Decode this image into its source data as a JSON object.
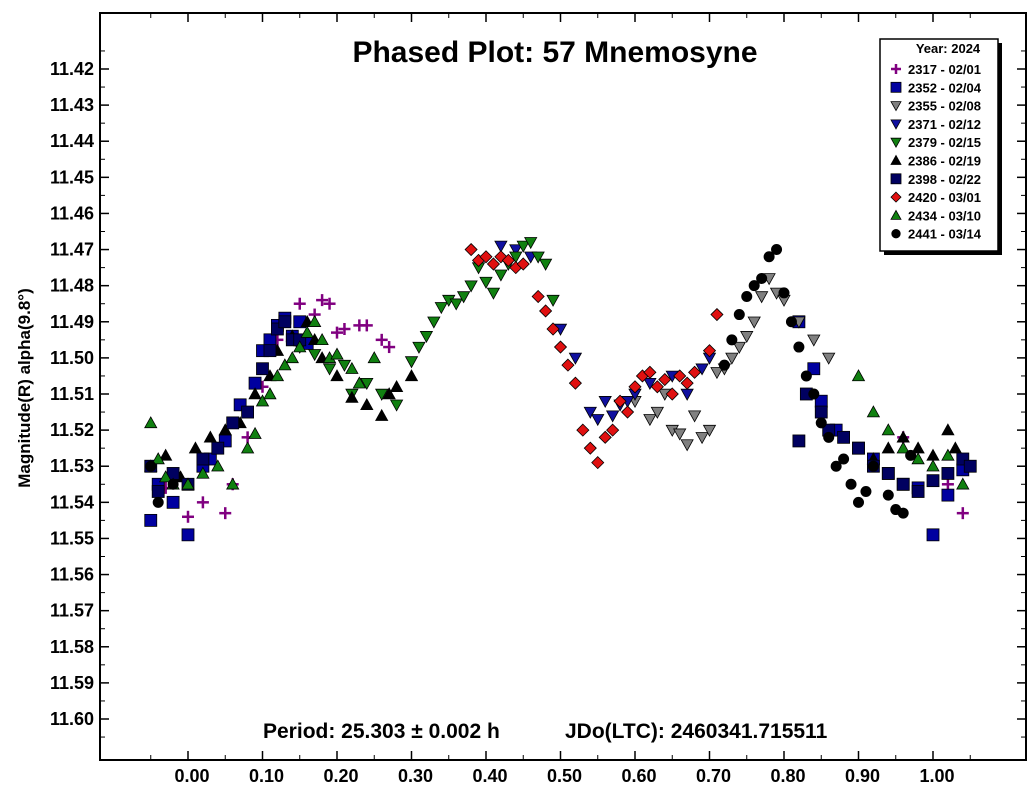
{
  "chart_data": {
    "type": "scatter",
    "title": "Phased Plot: 57 Mnemosyne",
    "ylabel": "Magnitude(R) alpha(9.8°)",
    "xlabel": "",
    "footer": {
      "period": "Period: 25.303 ± 0.002 h",
      "jdo": "JDo(LTC): 2460341.715511"
    },
    "xlim": [
      -0.12,
      1.12
    ],
    "ylim": [
      11.41,
      11.61
    ],
    "y_inverted": true,
    "x_ticks": [
      "0.00",
      "0.10",
      "0.20",
      "0.30",
      "0.40",
      "0.50",
      "0.60",
      "0.70",
      "0.80",
      "0.90",
      "1.00"
    ],
    "y_ticks": [
      "11.42",
      "11.43",
      "11.44",
      "11.45",
      "11.46",
      "11.47",
      "11.48",
      "11.49",
      "11.50",
      "11.51",
      "11.52",
      "11.53",
      "11.54",
      "11.55",
      "11.56",
      "11.57",
      "11.58",
      "11.59",
      "11.60"
    ],
    "grid": false,
    "legend_placement": "top-right",
    "legend_title": "Year: 2024",
    "series": [
      {
        "name": "2317 - 02/01",
        "marker": "plus",
        "color": "#800080",
        "x": [
          -0.03,
          0.0,
          0.02,
          0.05,
          0.06,
          0.08,
          0.1,
          0.12,
          0.15,
          0.17,
          0.18,
          0.19,
          0.2,
          0.21,
          0.23,
          0.24,
          0.26,
          0.27,
          0.96,
          1.02,
          1.04
        ],
        "y": [
          11.536,
          11.544,
          11.54,
          11.543,
          11.535,
          11.522,
          11.508,
          11.495,
          11.485,
          11.488,
          11.484,
          11.485,
          11.493,
          11.492,
          11.491,
          11.491,
          11.495,
          11.497,
          11.522,
          11.535,
          11.543
        ]
      },
      {
        "name": "2352 - 02/04",
        "marker": "square",
        "color": "#0000a0",
        "x": [
          -0.05,
          -0.04,
          -0.02,
          0.0,
          0.02,
          0.03,
          0.05,
          0.07,
          0.09,
          0.1,
          0.11,
          0.12,
          0.13,
          0.14,
          0.15,
          0.16,
          0.82,
          0.84,
          0.85,
          0.87,
          0.9,
          0.92,
          0.94,
          0.96,
          0.98,
          1.0,
          1.02,
          1.04
        ],
        "y": [
          11.545,
          11.535,
          11.54,
          11.549,
          11.53,
          11.528,
          11.523,
          11.513,
          11.507,
          11.498,
          11.495,
          11.491,
          11.489,
          11.494,
          11.49,
          11.496,
          11.49,
          11.503,
          11.512,
          11.52,
          11.525,
          11.528,
          11.532,
          11.535,
          11.536,
          11.549,
          11.538,
          11.531
        ]
      },
      {
        "name": "2355 - 02/08",
        "marker": "triangle-down",
        "color": "#808080",
        "x": [
          0.6,
          0.62,
          0.63,
          0.64,
          0.65,
          0.66,
          0.67,
          0.68,
          0.69,
          0.7,
          0.71,
          0.72,
          0.73,
          0.74,
          0.75,
          0.76,
          0.77,
          0.78,
          0.79,
          0.8,
          0.82,
          0.84,
          0.86
        ],
        "y": [
          11.512,
          11.517,
          11.515,
          11.51,
          11.52,
          11.521,
          11.524,
          11.516,
          11.522,
          11.52,
          11.504,
          11.503,
          11.5,
          11.497,
          11.494,
          11.49,
          11.483,
          11.478,
          11.482,
          11.484,
          11.49,
          11.495,
          11.5
        ]
      },
      {
        "name": "2371 - 02/12",
        "marker": "triangle-down",
        "color": "#1010a0",
        "x": [
          0.42,
          0.44,
          0.46,
          0.5,
          0.52,
          0.54,
          0.55,
          0.56,
          0.57,
          0.58,
          0.59,
          0.6,
          0.62,
          0.65,
          0.67,
          0.69,
          0.7
        ],
        "y": [
          11.469,
          11.47,
          11.472,
          11.492,
          11.5,
          11.515,
          11.517,
          11.512,
          11.516,
          11.513,
          11.512,
          11.51,
          11.507,
          11.505,
          11.51,
          11.503,
          11.5
        ]
      },
      {
        "name": "2379 - 02/15",
        "marker": "triangle-down",
        "color": "#108010",
        "x": [
          0.15,
          0.17,
          0.19,
          0.21,
          0.22,
          0.24,
          0.26,
          0.28,
          0.3,
          0.31,
          0.32,
          0.33,
          0.34,
          0.35,
          0.36,
          0.37,
          0.38,
          0.39,
          0.4,
          0.41,
          0.42,
          0.43,
          0.44,
          0.45,
          0.46,
          0.47,
          0.48,
          0.49
        ],
        "y": [
          11.497,
          11.499,
          11.503,
          11.502,
          11.51,
          11.507,
          11.51,
          11.513,
          11.501,
          11.497,
          11.494,
          11.49,
          11.486,
          11.484,
          11.485,
          11.483,
          11.48,
          11.475,
          11.479,
          11.482,
          11.477,
          11.474,
          11.472,
          11.469,
          11.468,
          11.472,
          11.474,
          11.484
        ]
      },
      {
        "name": "2386 - 02/19",
        "marker": "triangle-up",
        "color": "#000000",
        "x": [
          -0.05,
          -0.03,
          -0.01,
          0.01,
          0.03,
          0.05,
          0.07,
          0.09,
          0.11,
          0.12,
          0.14,
          0.16,
          0.17,
          0.18,
          0.2,
          0.22,
          0.24,
          0.26,
          0.27,
          0.28,
          0.3,
          0.92,
          0.94,
          0.96,
          0.98,
          1.0,
          1.02,
          1.03
        ],
        "y": [
          11.53,
          11.527,
          11.533,
          11.525,
          11.522,
          11.52,
          11.518,
          11.51,
          11.505,
          11.498,
          11.494,
          11.49,
          11.495,
          11.5,
          11.505,
          11.511,
          11.513,
          11.516,
          11.51,
          11.508,
          11.505,
          11.528,
          11.525,
          11.522,
          11.525,
          11.527,
          11.52,
          11.525
        ]
      },
      {
        "name": "2398 - 02/22",
        "marker": "square",
        "color": "#000060",
        "x": [
          -0.05,
          -0.04,
          -0.02,
          0.0,
          0.02,
          0.04,
          0.06,
          0.08,
          0.1,
          0.11,
          0.12,
          0.13,
          0.14,
          0.15,
          0.82,
          0.83,
          0.85,
          0.86,
          0.88,
          0.9,
          0.92,
          0.94,
          0.96,
          0.98,
          1.0,
          1.02,
          1.04,
          1.05
        ],
        "y": [
          11.53,
          11.537,
          11.532,
          11.535,
          11.528,
          11.525,
          11.518,
          11.515,
          11.503,
          11.498,
          11.492,
          11.49,
          11.495,
          11.495,
          11.523,
          11.51,
          11.515,
          11.52,
          11.522,
          11.525,
          11.53,
          11.532,
          11.535,
          11.537,
          11.534,
          11.532,
          11.528,
          11.53
        ]
      },
      {
        "name": "2420 - 03/01",
        "marker": "diamond",
        "color": "#e01010",
        "x": [
          0.38,
          0.39,
          0.4,
          0.41,
          0.42,
          0.43,
          0.44,
          0.45,
          0.47,
          0.48,
          0.49,
          0.5,
          0.51,
          0.52,
          0.53,
          0.54,
          0.55,
          0.56,
          0.57,
          0.58,
          0.59,
          0.6,
          0.61,
          0.62,
          0.63,
          0.64,
          0.65,
          0.66,
          0.67,
          0.68,
          0.7,
          0.71
        ],
        "y": [
          11.47,
          11.473,
          11.472,
          11.474,
          11.472,
          11.473,
          11.475,
          11.474,
          11.483,
          11.487,
          11.492,
          11.497,
          11.502,
          11.507,
          11.52,
          11.525,
          11.529,
          11.522,
          11.52,
          11.512,
          11.515,
          11.508,
          11.505,
          11.504,
          11.508,
          11.506,
          11.51,
          11.505,
          11.507,
          11.504,
          11.498,
          11.488
        ]
      },
      {
        "name": "2434 - 03/10",
        "marker": "triangle-up",
        "color": "#108010",
        "x": [
          -0.05,
          -0.04,
          -0.03,
          -0.02,
          0.0,
          0.02,
          0.04,
          0.06,
          0.08,
          0.09,
          0.1,
          0.11,
          0.12,
          0.13,
          0.14,
          0.15,
          0.16,
          0.17,
          0.18,
          0.19,
          0.2,
          0.22,
          0.23,
          0.25,
          0.9,
          0.92,
          0.94,
          0.96,
          0.98,
          1.0,
          1.02,
          1.04
        ],
        "y": [
          11.518,
          11.528,
          11.533,
          11.535,
          11.535,
          11.532,
          11.53,
          11.535,
          11.525,
          11.521,
          11.512,
          11.51,
          11.505,
          11.502,
          11.5,
          11.497,
          11.493,
          11.49,
          11.495,
          11.5,
          11.499,
          11.503,
          11.507,
          11.5,
          11.505,
          11.515,
          11.52,
          11.525,
          11.528,
          11.53,
          11.527,
          11.535
        ]
      },
      {
        "name": "2441 - 03/14",
        "marker": "circle",
        "color": "#000000",
        "x": [
          -0.05,
          -0.04,
          -0.02,
          0.72,
          0.73,
          0.74,
          0.75,
          0.76,
          0.77,
          0.78,
          0.79,
          0.8,
          0.81,
          0.82,
          0.83,
          0.84,
          0.85,
          0.86,
          0.87,
          0.88,
          0.89,
          0.9,
          0.91,
          0.92,
          0.94,
          0.95,
          0.96,
          0.97
        ],
        "y": [
          11.53,
          11.54,
          11.535,
          11.502,
          11.495,
          11.488,
          11.483,
          11.48,
          11.478,
          11.472,
          11.47,
          11.482,
          11.49,
          11.497,
          11.505,
          11.51,
          11.518,
          11.522,
          11.53,
          11.528,
          11.535,
          11.54,
          11.537,
          11.53,
          11.538,
          11.542,
          11.543,
          11.527
        ]
      }
    ]
  }
}
